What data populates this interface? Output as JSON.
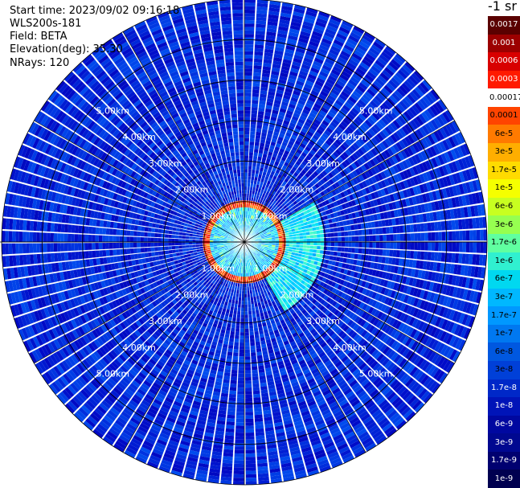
{
  "header": {
    "start_time": "Start time: 2023/09/02 09:16:18",
    "instrument": "WLS200s-181",
    "field": "Field: BETA",
    "elevation": "Elevation(deg): 35.30",
    "nrays": "NRays: 120"
  },
  "colorbar": {
    "unit_label": "-1 sr",
    "labels": [
      "0.0017",
      "0.001",
      "0.0006",
      "0.0003",
      "0.00017",
      "0.0001",
      "6e-5",
      "3e-5",
      "1.7e-5",
      "1e-5",
      "6e-6",
      "3e-6",
      "1.7e-6",
      "1e-6",
      "6e-7",
      "3e-7",
      "1.7e-7",
      "1e-7",
      "6e-8",
      "3e-8",
      "1.7e-8",
      "1e-8",
      "6e-9",
      "3e-9",
      "1.7e-9",
      "1e-9"
    ],
    "colors": [
      "#5a0000",
      "#9c0000",
      "#d80000",
      "#ff1a00",
      "#ffffff",
      "#ff4400",
      "#ff7a00",
      "#ffae00",
      "#ffdb00",
      "#f5ff00",
      "#c8ff20",
      "#96ff50",
      "#60ffa0",
      "#30f0d0",
      "#00d8f0",
      "#00b8ff",
      "#0098ff",
      "#0078f0",
      "#0058e0",
      "#0040d8",
      "#0028c8",
      "#0014b8",
      "#0008a0",
      "#000890",
      "#000070",
      "#000050"
    ],
    "label_colors": [
      "#ffffff",
      "#ffffff",
      "#ffffff",
      "#ffffff",
      "#000000",
      "#000000",
      "#000000",
      "#000000",
      "#000000",
      "#000000",
      "#000000",
      "#000000",
      "#000000",
      "#000000",
      "#000000",
      "#000000",
      "#000000",
      "#000000",
      "#000000",
      "#000000",
      "#ffffff",
      "#ffffff",
      "#ffffff",
      "#ffffff",
      "#ffffff",
      "#ffffff"
    ]
  },
  "chart_data": {
    "type": "heatmap",
    "projection": "polar-ppi",
    "title": "",
    "nrays": 120,
    "range_unit": "km",
    "max_range_km": 6,
    "range_rings_km": [
      1,
      2,
      3,
      4,
      5,
      6
    ],
    "ring_labels": [
      "1.00km",
      "2.00km",
      "3.00km",
      "4.00km",
      "5.00km"
    ],
    "label_directions": [
      "NE",
      "SE",
      "SW",
      "NW"
    ],
    "scale": "log",
    "value_range": [
      1e-09,
      0.0017
    ],
    "grid": true,
    "regions": [
      {
        "range_km": [
          0,
          0.9
        ],
        "azimuth_deg": [
          0,
          360
        ],
        "beta_approx": 1e-06
      },
      {
        "range_km": [
          0.9,
          1.05
        ],
        "azimuth_deg": [
          0,
          360
        ],
        "beta_approx": 0.0003
      },
      {
        "range_km": [
          1.05,
          2.0
        ],
        "azimuth_deg": [
          60,
          150
        ],
        "beta_approx": 2e-06
      },
      {
        "range_km": [
          1.05,
          6.0
        ],
        "azimuth_deg": [
          0,
          360
        ],
        "beta_approx": 3e-08
      }
    ]
  }
}
